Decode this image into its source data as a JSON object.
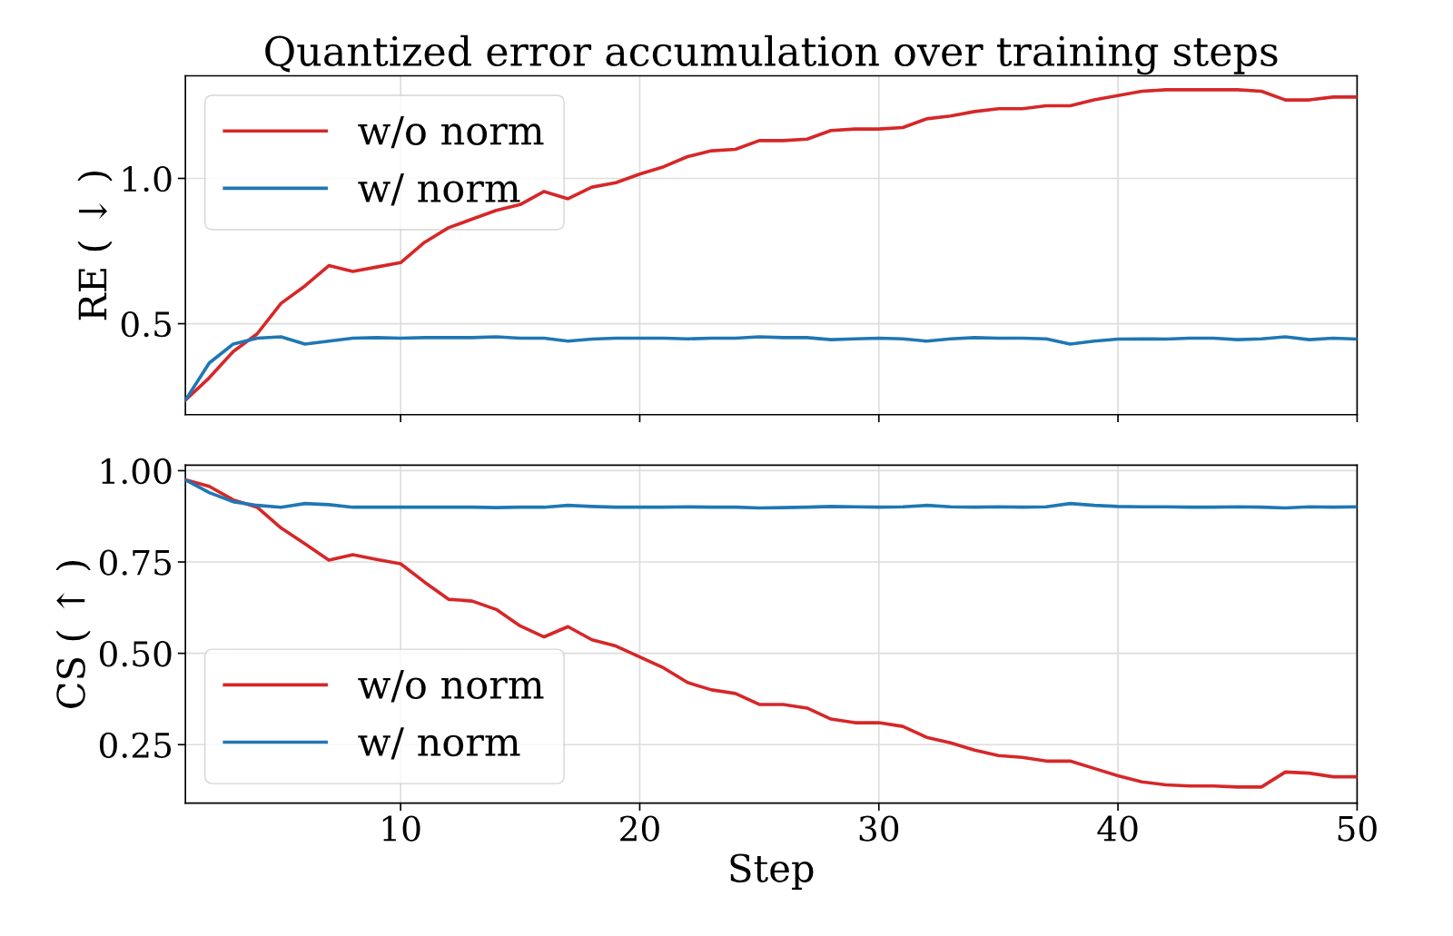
{
  "chart_data": [
    {
      "type": "line",
      "title": "Quantized error accumulation over training steps",
      "ylabel": "RE ( ↓ )",
      "x": [
        1,
        2,
        3,
        4,
        5,
        6,
        7,
        8,
        9,
        10,
        11,
        12,
        13,
        14,
        15,
        16,
        17,
        18,
        19,
        20,
        21,
        22,
        23,
        24,
        25,
        26,
        27,
        28,
        29,
        30,
        31,
        32,
        33,
        34,
        35,
        36,
        37,
        38,
        39,
        40,
        41,
        42,
        43,
        44,
        45,
        46,
        47,
        48,
        49,
        50
      ],
      "series": [
        {
          "name": "w/o norm",
          "color": "#d62728",
          "values": [
            0.237,
            0.314,
            0.404,
            0.465,
            0.57,
            0.63,
            0.7,
            0.68,
            0.695,
            0.71,
            0.78,
            0.83,
            0.86,
            0.89,
            0.91,
            0.955,
            0.93,
            0.97,
            0.985,
            1.015,
            1.04,
            1.075,
            1.095,
            1.1,
            1.13,
            1.13,
            1.135,
            1.165,
            1.17,
            1.17,
            1.175,
            1.205,
            1.215,
            1.23,
            1.24,
            1.24,
            1.25,
            1.25,
            1.27,
            1.285,
            1.3,
            1.305,
            1.305,
            1.305,
            1.305,
            1.3,
            1.27,
            1.27,
            1.28,
            1.28
          ]
        },
        {
          "name": "w/ norm",
          "color": "#1f77b4",
          "values": [
            0.237,
            0.365,
            0.43,
            0.45,
            0.455,
            0.43,
            0.44,
            0.45,
            0.452,
            0.45,
            0.452,
            0.452,
            0.452,
            0.455,
            0.45,
            0.45,
            0.44,
            0.447,
            0.45,
            0.45,
            0.45,
            0.448,
            0.45,
            0.45,
            0.455,
            0.452,
            0.452,
            0.445,
            0.448,
            0.45,
            0.448,
            0.44,
            0.448,
            0.452,
            0.45,
            0.45,
            0.448,
            0.43,
            0.44,
            0.447,
            0.448,
            0.447,
            0.45,
            0.45,
            0.445,
            0.448,
            0.455,
            0.445,
            0.45,
            0.447
          ]
        }
      ],
      "xlim": [
        1,
        50
      ],
      "xticks": [
        10,
        20,
        30,
        40,
        50
      ],
      "ylim": [
        0.187,
        1.353
      ],
      "yticks": [
        {
          "value": 0.5,
          "label": "0.5"
        },
        {
          "value": 1.0,
          "label": "1.0"
        }
      ],
      "grid": true,
      "legend": "upper left",
      "tick_labels": "y",
      "line_style": "solid",
      "marker": "none"
    },
    {
      "type": "line",
      "xlabel": "Step",
      "ylabel": "CS ( ↑ )",
      "x": [
        1,
        2,
        3,
        4,
        5,
        6,
        7,
        8,
        9,
        10,
        11,
        12,
        13,
        14,
        15,
        16,
        17,
        18,
        19,
        20,
        21,
        22,
        23,
        24,
        25,
        26,
        27,
        28,
        29,
        30,
        31,
        32,
        33,
        34,
        35,
        36,
        37,
        38,
        39,
        40,
        41,
        42,
        43,
        44,
        45,
        46,
        47,
        48,
        49,
        50
      ],
      "series": [
        {
          "name": "w/o norm",
          "color": "#d62728",
          "values": [
            0.975,
            0.957,
            0.92,
            0.9,
            0.843,
            0.8,
            0.755,
            0.77,
            0.757,
            0.745,
            0.695,
            0.648,
            0.643,
            0.62,
            0.575,
            0.545,
            0.573,
            0.537,
            0.52,
            0.49,
            0.46,
            0.42,
            0.4,
            0.39,
            0.36,
            0.36,
            0.35,
            0.32,
            0.31,
            0.31,
            0.3,
            0.27,
            0.255,
            0.235,
            0.22,
            0.215,
            0.205,
            0.205,
            0.185,
            0.165,
            0.148,
            0.14,
            0.137,
            0.137,
            0.134,
            0.134,
            0.175,
            0.172,
            0.162,
            0.162
          ]
        },
        {
          "name": "w/ norm",
          "color": "#1f77b4",
          "values": [
            0.975,
            0.94,
            0.915,
            0.905,
            0.9,
            0.91,
            0.907,
            0.9,
            0.9,
            0.9,
            0.9,
            0.9,
            0.9,
            0.899,
            0.9,
            0.9,
            0.905,
            0.902,
            0.9,
            0.9,
            0.9,
            0.901,
            0.9,
            0.9,
            0.898,
            0.899,
            0.9,
            0.902,
            0.901,
            0.9,
            0.901,
            0.905,
            0.901,
            0.9,
            0.901,
            0.9,
            0.901,
            0.91,
            0.905,
            0.902,
            0.901,
            0.901,
            0.9,
            0.9,
            0.901,
            0.9,
            0.898,
            0.901,
            0.9,
            0.901
          ]
        }
      ],
      "xlim": [
        1,
        50
      ],
      "xticks": [
        10,
        20,
        30,
        40,
        50
      ],
      "ylim": [
        0.09,
        1.015
      ],
      "yticks": [
        {
          "value": 0.25,
          "label": "0.25"
        },
        {
          "value": 0.5,
          "label": "0.50"
        },
        {
          "value": 0.75,
          "label": "0.75"
        },
        {
          "value": 1.0,
          "label": "1.00"
        }
      ],
      "grid": true,
      "legend": "lower left",
      "line_style": "solid",
      "marker": "none"
    }
  ]
}
